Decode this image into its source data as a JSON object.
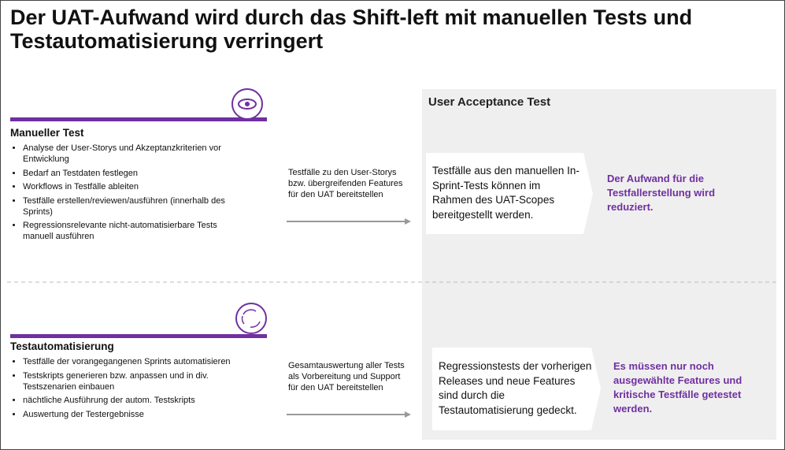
{
  "title": "Der UAT-Aufwand wird durch das Shift-left mit manuellen Tests und Testautomatisierung verringert",
  "uat_heading": "User Acceptance Test",
  "sections": [
    {
      "heading": "Manueller Test",
      "bullets": [
        "Analyse der User-Storys und Akzeptanzkriterien vor Entwicklung",
        "Bedarf an Testdaten festlegen",
        "Workflows in Testfälle ableiten",
        "Testfälle erstellen/reviewen/ausführen (innerhalb des Sprints)",
        "Regressionsrelevante nicht-automatisierbare Tests manuell ausführen"
      ],
      "handover": "Testfälle zu den User-Storys bzw. übergreifenden Features für den UAT bereitstellen",
      "uat_box": "Testfälle aus den manuellen In-Sprint-Tests können im Rahmen des UAT-Scopes bereitgestellt werden.",
      "result": "Der Aufwand für die Testfallerstellung wird reduziert."
    },
    {
      "heading": "Testautomatisierung",
      "bullets": [
        "Testfälle der vorangegangenen Sprints automatisieren",
        "Testskripts generieren bzw. anpassen und in div. Testszenarien einbauen",
        "nächtliche Ausführung der autom. Testskripts",
        "Auswertung der Testergebnisse"
      ],
      "handover": "Gesamtauswertung aller Tests als Vorbereitung und Support für den UAT bereitstellen",
      "uat_box": "Regressionstests der vorherigen Releases und neue Features sind durch die Testautomatisierung gedeckt.",
      "result": "Es müssen nur noch ausgewählte Features und kritische Testfälle getestet werden."
    }
  ]
}
